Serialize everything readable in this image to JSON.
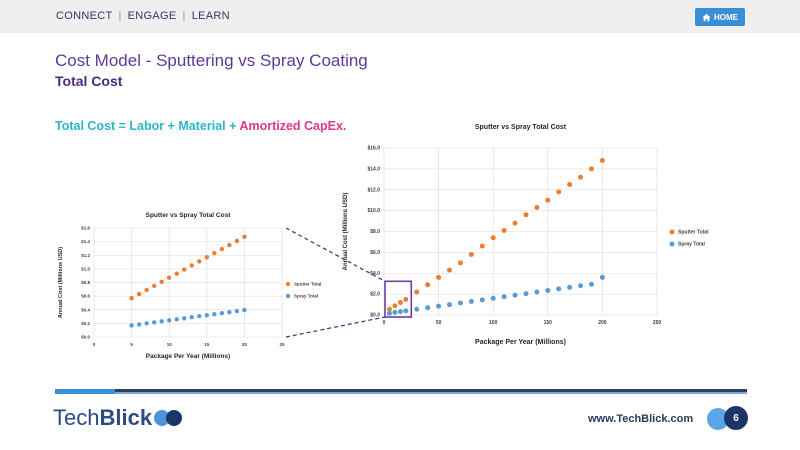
{
  "nav": {
    "items": [
      "CONNECT",
      "ENGAGE",
      "LEARN"
    ],
    "separator": "|"
  },
  "home_button": {
    "label": "HOME",
    "icon": "home-icon"
  },
  "slide": {
    "title": "Cost Model - Sputtering vs Spray Coating",
    "subtitle": "Total Cost",
    "formula_part1": "Total Cost = Labor + Material + ",
    "formula_part2": "Amortized CapEx."
  },
  "footer": {
    "logo_part1": "Tech",
    "logo_part2": "Blick",
    "url": "www.TechBlick.com",
    "page_number": "6"
  },
  "colors": {
    "title": "#5b3a99",
    "formula_teal": "#2ab6c9",
    "formula_pink": "#e0368f",
    "sputter": "#ed7d31",
    "spray": "#5b9bd5",
    "highlight": "#6a3fa6"
  },
  "chart_data": [
    {
      "type": "scatter",
      "title": "Sputter vs Spray Total Cost",
      "xlabel": "Package Per Year (Millions)",
      "ylabel": "Annual Cost (Millions USD)",
      "xlim": [
        0,
        25
      ],
      "ylim": [
        0,
        1.6
      ],
      "xticks": [
        "0",
        "5",
        "10",
        "15",
        "20",
        "25"
      ],
      "yticks": [
        "$0.0",
        "$0.2",
        "$0.4",
        "$0.6",
        "$0.8",
        "$1.0",
        "$1.2",
        "$1.4",
        "$1.6"
      ],
      "grid": true,
      "legend_position": "right",
      "series": [
        {
          "name": "Sputter Total",
          "color": "#ed7d31",
          "x": [
            5,
            6,
            7,
            8,
            9,
            10,
            11,
            12,
            13,
            14,
            15,
            16,
            17,
            18,
            19,
            20
          ],
          "y": [
            0.57,
            0.63,
            0.69,
            0.75,
            0.81,
            0.87,
            0.93,
            0.99,
            1.05,
            1.11,
            1.17,
            1.23,
            1.29,
            1.35,
            1.41,
            1.47
          ]
        },
        {
          "name": "Spray Total",
          "color": "#5b9bd5",
          "x": [
            5,
            6,
            7,
            8,
            9,
            10,
            11,
            12,
            13,
            14,
            15,
            16,
            17,
            18,
            19,
            20
          ],
          "y": [
            0.17,
            0.185,
            0.2,
            0.215,
            0.23,
            0.245,
            0.26,
            0.275,
            0.29,
            0.305,
            0.32,
            0.335,
            0.35,
            0.365,
            0.38,
            0.395
          ]
        }
      ]
    },
    {
      "type": "scatter",
      "title": "Sputter vs Spray Total Cost",
      "xlabel": "Package Per Year (Millions)",
      "ylabel": "Annual Cost (Millions USD)",
      "xlim": [
        0,
        250
      ],
      "ylim": [
        0,
        16
      ],
      "xticks": [
        "0",
        "50",
        "100",
        "150",
        "200",
        "250"
      ],
      "yticks": [
        "$0.0",
        "$2.0",
        "$4.0",
        "$6.0",
        "$8.0",
        "$10.0",
        "$12.0",
        "$14.0",
        "$16.0"
      ],
      "grid": true,
      "legend_position": "right",
      "highlight_box": {
        "x": [
          0,
          25
        ],
        "y": [
          0,
          1.6
        ]
      },
      "series": [
        {
          "name": "Sputter Total",
          "color": "#ed7d31",
          "x": [
            5,
            10,
            15,
            20,
            30,
            40,
            50,
            60,
            70,
            80,
            90,
            100,
            110,
            120,
            130,
            140,
            150,
            160,
            170,
            180,
            190,
            200
          ],
          "y": [
            0.55,
            0.87,
            1.2,
            1.5,
            2.2,
            2.9,
            3.6,
            4.3,
            5.0,
            5.8,
            6.6,
            7.4,
            8.1,
            8.8,
            9.6,
            10.3,
            11.0,
            11.8,
            12.5,
            13.2,
            14.0,
            14.8
          ]
        },
        {
          "name": "Spray Total",
          "color": "#5b9bd5",
          "x": [
            5,
            10,
            15,
            20,
            30,
            40,
            50,
            60,
            70,
            80,
            90,
            100,
            110,
            120,
            130,
            140,
            150,
            160,
            170,
            180,
            190,
            200
          ],
          "y": [
            0.17,
            0.25,
            0.32,
            0.4,
            0.55,
            0.7,
            0.85,
            1.0,
            1.15,
            1.3,
            1.45,
            1.6,
            1.75,
            1.9,
            2.05,
            2.2,
            2.35,
            2.5,
            2.65,
            2.8,
            2.95,
            3.6
          ]
        }
      ]
    }
  ]
}
